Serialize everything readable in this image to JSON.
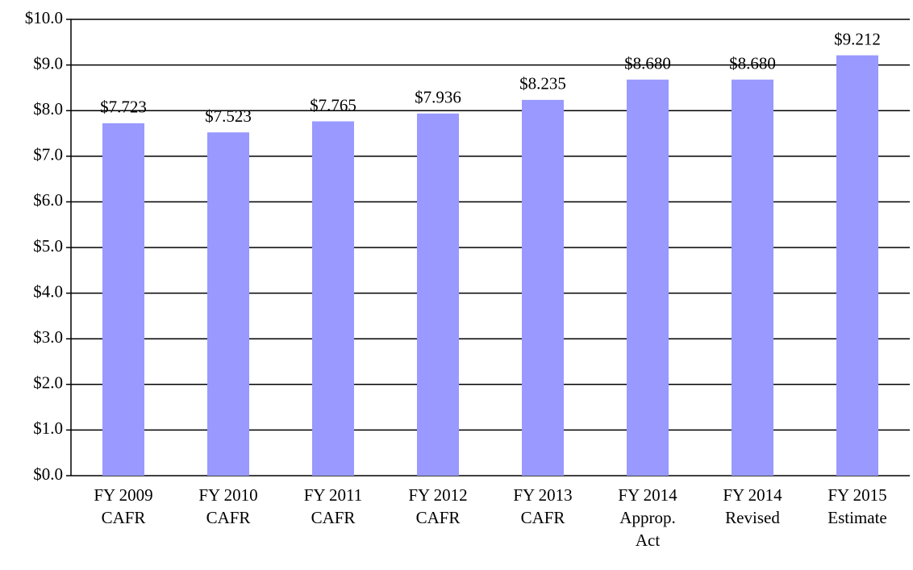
{
  "chart_data": {
    "type": "bar",
    "categories": [
      "FY 2009\nCAFR",
      "FY 2010\nCAFR",
      "FY 2011\nCAFR",
      "FY 2012\nCAFR",
      "FY 2013\nCAFR",
      "FY 2014\nApprop.\nAct",
      "FY 2014\nRevised",
      "FY 2015\nEstimate"
    ],
    "values": [
      7.723,
      7.523,
      7.765,
      7.936,
      8.235,
      8.68,
      8.68,
      9.212
    ],
    "value_labels": [
      "$7.723",
      "$7.523",
      "$7.765",
      "$7.936",
      "$8.235",
      "$8.680",
      "$8.680",
      "$9.212"
    ],
    "color": "#9999ff",
    "ylim": [
      0,
      10
    ],
    "yticks": [
      {
        "value": 0,
        "label": "$0.0"
      },
      {
        "value": 1,
        "label": "$1.0"
      },
      {
        "value": 2,
        "label": "$2.0"
      },
      {
        "value": 3,
        "label": "$3.0"
      },
      {
        "value": 4,
        "label": "$4.0"
      },
      {
        "value": 5,
        "label": "$5.0"
      },
      {
        "value": 6,
        "label": "$6.0"
      },
      {
        "value": 7,
        "label": "$7.0"
      },
      {
        "value": 8,
        "label": "$8.0"
      },
      {
        "value": 9,
        "label": "$9.0"
      },
      {
        "value": 10,
        "label": "$10.0"
      }
    ],
    "grid": true
  }
}
